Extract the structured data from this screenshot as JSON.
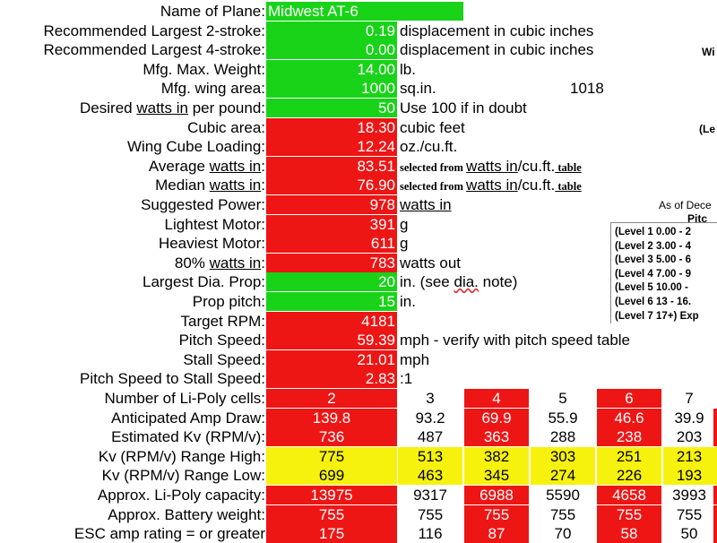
{
  "rows": [
    {
      "label": "Name of Plane:",
      "value": "Midwest AT-6",
      "color": "green",
      "note": ""
    },
    {
      "label": "Recommended Largest 2-stroke:",
      "value": "0.19",
      "color": "green",
      "note": "displacement in cubic inches"
    },
    {
      "label": "Recommended Largest 4-stroke:",
      "value": "0.00",
      "color": "green",
      "note": "displacement in cubic inches"
    },
    {
      "label": "Mfg. Max. Weight:",
      "value": "14.00",
      "color": "green",
      "note": "lb."
    },
    {
      "label": "Mfg. wing area:",
      "value": "1000",
      "color": "green",
      "note": "sq.in.",
      "extra": "1018"
    },
    {
      "label_pre": "Desired ",
      "label_u": "watts in",
      "label_post": " per pound:",
      "value": "50",
      "color": "green",
      "note": "Use 100 if in doubt"
    },
    {
      "label": "Cubic area:",
      "value": "18.30",
      "color": "red",
      "note": "cubic feet"
    },
    {
      "label": "Wing Cube Loading:",
      "value": "12.24",
      "color": "red",
      "note": "oz./cu.ft."
    },
    {
      "label_pre": "Average ",
      "label_u": "watts in",
      "label_post": ":",
      "value": "83.51",
      "color": "red",
      "note_a": "selected from ",
      "note_b": "watts in",
      "note_c": "/cu.ft.",
      "note_d": " table"
    },
    {
      "label_pre": "Median ",
      "label_u": "watts in",
      "label_post": ":",
      "value": "76.90",
      "color": "red",
      "note_a": "selected from ",
      "note_b": "watts in",
      "note_c": "/cu.ft.",
      "note_d": " table"
    },
    {
      "label": "Suggested Power:",
      "value": "978",
      "color": "red",
      "note": "watts in",
      "note_underline": true
    },
    {
      "label": "Lightest Motor:",
      "value": "391",
      "color": "red",
      "note": "g"
    },
    {
      "label": "Heaviest Motor:",
      "value": "611",
      "color": "red",
      "note": "g"
    },
    {
      "label_pre": "80% ",
      "label_u": "watts in",
      "label_post": ":",
      "value": "783",
      "color": "red",
      "note": "watts out"
    },
    {
      "label": "Largest Dia. Prop:",
      "value": "20",
      "color": "green",
      "note_pre": "in. (see ",
      "note_wavy": "dia.",
      "note_post": " note)"
    },
    {
      "label": "Prop pitch:",
      "value": "15",
      "color": "green",
      "note": "in."
    },
    {
      "label": "Target RPM:",
      "value": "4181",
      "color": "red",
      "note": ""
    },
    {
      "label": "Pitch Speed:",
      "value": "59.39",
      "color": "red",
      "note": "mph - verify with pitch speed table"
    },
    {
      "label": "Stall Speed:",
      "value": "21.01",
      "color": "red",
      "note": "mph"
    },
    {
      "label": "Pitch Speed to Stall Speed:",
      "value": "2.83",
      "color": "red",
      "note": ":1"
    }
  ],
  "cell_table": {
    "header_label": "Number of Li-Poly cells:",
    "cells": [
      "2",
      "3",
      "4",
      "5",
      "6",
      "7"
    ],
    "rows": [
      {
        "label": "Anticipated Amp Draw:",
        "values": [
          "139.8",
          "93.2",
          "69.9",
          "55.9",
          "46.6",
          "39.9"
        ],
        "style": "red"
      },
      {
        "label": "Estimated Kv (RPM/v):",
        "values": [
          "736",
          "487",
          "363",
          "288",
          "238",
          "203"
        ],
        "style": "red"
      },
      {
        "label": "Kv (RPM/v) Range High:",
        "values": [
          "775",
          "513",
          "382",
          "303",
          "251",
          "213"
        ],
        "style": "yellow"
      },
      {
        "label": "Kv (RPM/v) Range Low:",
        "values": [
          "699",
          "463",
          "345",
          "274",
          "226",
          "193"
        ],
        "style": "yellow"
      },
      {
        "label": "Approx. Li-Poly capacity:",
        "values": [
          "13975",
          "9317",
          "6988",
          "5590",
          "4658",
          "3993"
        ],
        "style": "red"
      },
      {
        "label": "Approx. Battery weight:",
        "values": [
          "755",
          "755",
          "755",
          "755",
          "755",
          "755"
        ],
        "style": "red"
      },
      {
        "label": "ESC amp rating = or greater",
        "values": [
          "175",
          "116",
          "87",
          "70",
          "58",
          "50"
        ],
        "style": "red"
      }
    ]
  },
  "side": {
    "wi": "Wi",
    "le": "(Le",
    "as_of": "As of Dece",
    "pitc": "Pitc",
    "levels": [
      {
        "name": "(Level 1",
        "range": "0.00 - 2"
      },
      {
        "name": "(Level 2",
        "range": "3.00 - 4"
      },
      {
        "name": "(Level 3",
        "range": "5.00 - 6"
      },
      {
        "name": "(Level 4",
        "range": "7.00 - 9"
      },
      {
        "name": "(Level 5",
        "range": "10.00 -"
      },
      {
        "name": "(Level 6",
        "range": "13 - 16."
      },
      {
        "name": "(Level 7",
        "range": "17+) Exp"
      }
    ]
  }
}
